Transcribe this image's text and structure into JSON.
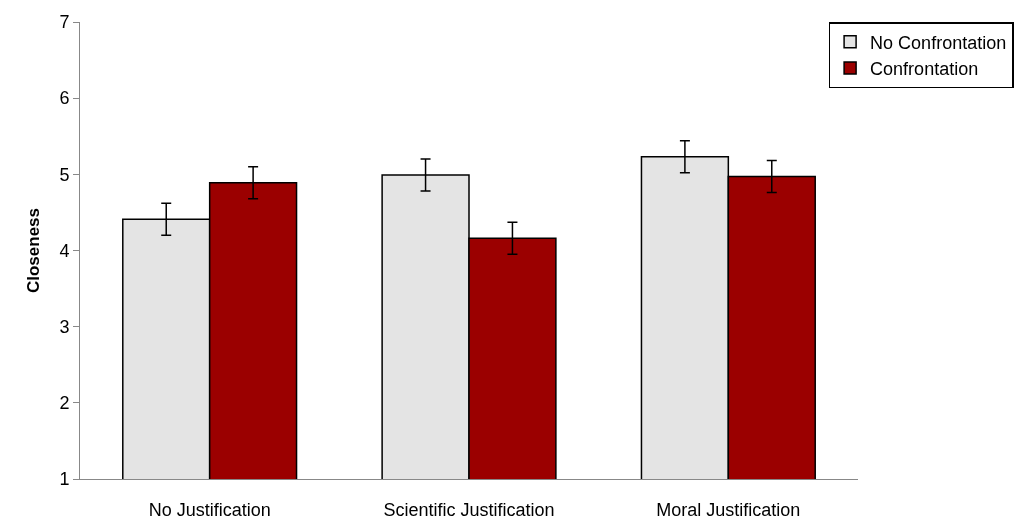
{
  "chart_data": {
    "type": "bar",
    "ylabel": "Closeness",
    "categories": [
      "No Justification",
      "Scientific Justification",
      "Moral Justification"
    ],
    "series": [
      {
        "name": "No Confrontation",
        "color": "#e4e4e4",
        "values": [
          4.41,
          4.99,
          5.23
        ],
        "errors": [
          0.21,
          0.21,
          0.21
        ]
      },
      {
        "name": "Confrontation",
        "color": "#9b0000",
        "values": [
          4.89,
          4.16,
          4.97
        ],
        "errors": [
          0.21,
          0.21,
          0.21
        ]
      }
    ],
    "ylim": [
      1,
      7
    ],
    "yticks": [
      1,
      2,
      3,
      4,
      5,
      6,
      7
    ],
    "legend": "top right"
  }
}
